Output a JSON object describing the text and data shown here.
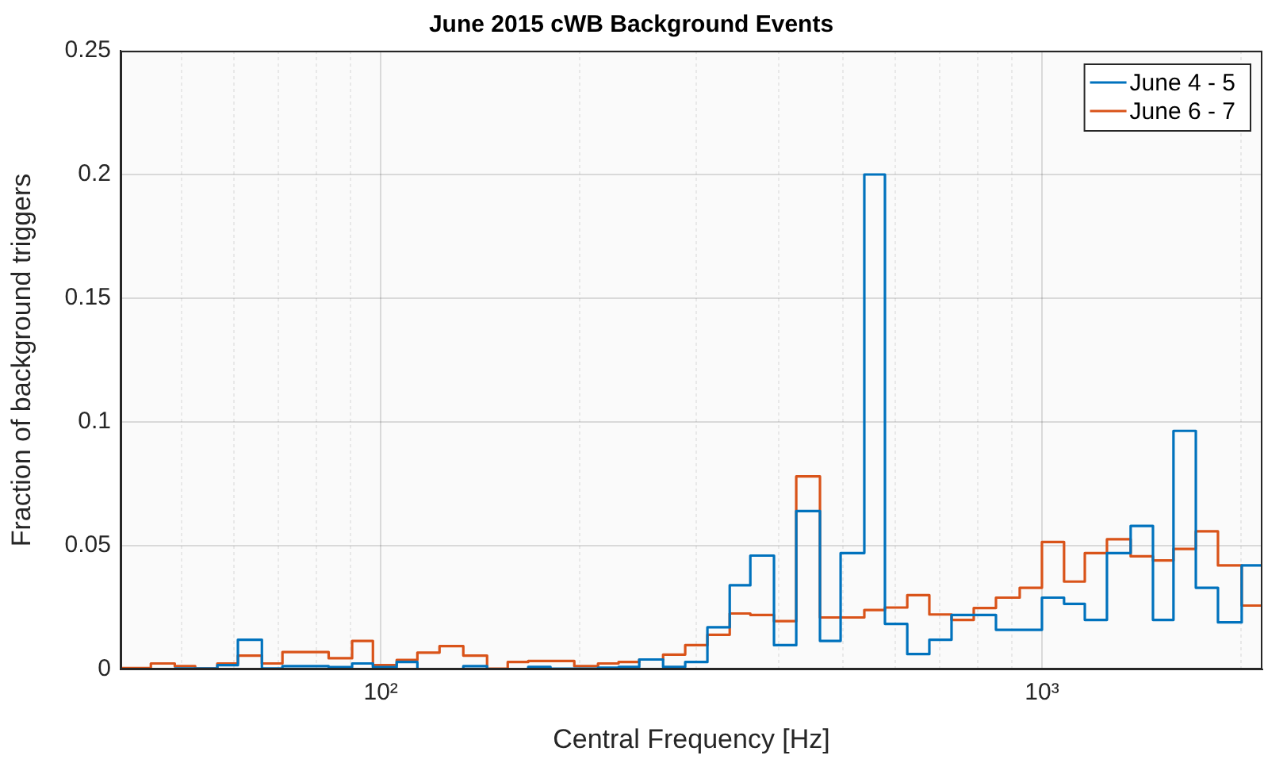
{
  "chart_data": {
    "type": "histogram",
    "title": "June 2015 cWB Background Events",
    "xlabel": "Central Frequency [Hz]",
    "ylabel": "Fraction of background triggers",
    "log": "x",
    "grid": true,
    "legend": "top right",
    "xlim": [
      40.4,
      2155
    ],
    "ylim": [
      0,
      0.25
    ],
    "xticks": [
      {
        "value": 50,
        "label": null
      },
      {
        "value": 60,
        "label": null
      },
      {
        "value": 70,
        "label": null
      },
      {
        "value": 80,
        "label": null
      },
      {
        "value": 90,
        "label": null
      },
      {
        "value": 100,
        "label": "10²"
      },
      {
        "value": 200,
        "label": null
      },
      {
        "value": 300,
        "label": null
      },
      {
        "value": 400,
        "label": null
      },
      {
        "value": 500,
        "label": null
      },
      {
        "value": 600,
        "label": null
      },
      {
        "value": 700,
        "label": null
      },
      {
        "value": 800,
        "label": null
      },
      {
        "value": 900,
        "label": null
      },
      {
        "value": 1000,
        "label": "10³"
      },
      {
        "value": 2000,
        "label": null
      }
    ],
    "yticks": [
      0,
      0.05,
      0.1,
      0.15,
      0.2,
      0.25
    ],
    "bins": [
      40.4,
      44.9,
      48.8,
      52.4,
      56.6,
      60.8,
      66.1,
      71.0,
      76.7,
      83.4,
      90.5,
      97.3,
      105.7,
      113.6,
      122.7,
      133.3,
      144.8,
      155.6,
      167.1,
      180.6,
      196.2,
      213.1,
      228.9,
      246.0,
      267.3,
      288.7,
      311.9,
      337.1,
      362.2,
      393.3,
      425.0,
      461.6,
      496.0,
      538.7,
      578.8,
      625.6,
      675.6,
      729.9,
      788.6,
      852.0,
      925.5,
      1000,
      1080,
      1161,
      1254,
      1362,
      1472,
      1581,
      1709,
      1846,
      2005,
      2155
    ],
    "series": [
      {
        "name": "June 4 - 5",
        "color": "#0072bd",
        "values": [
          0,
          0,
          0.0004,
          0.0004,
          0.0017,
          0.012,
          0.0004,
          0.0013,
          0.0013,
          0.0009,
          0.0024,
          0.0009,
          0.003,
          0,
          0,
          0.0013,
          0,
          0,
          0.001,
          0.0003,
          0.0003,
          0.0007,
          0.001,
          0.004,
          0.001,
          0.003,
          0.017,
          0.034,
          0.046,
          0.0098,
          0.064,
          0.0115,
          0.047,
          0.2,
          0.0184,
          0.0062,
          0.012,
          0.022,
          0.022,
          0.016,
          0.016,
          0.029,
          0.0265,
          0.02,
          0.047,
          0.058,
          0.02,
          0.0964,
          0.033,
          0.019,
          0.042
        ]
      },
      {
        "name": "June 6 - 7",
        "color": "#d95319",
        "values": [
          0.0005,
          0.0024,
          0.0013,
          0.0004,
          0.0024,
          0.0056,
          0.0024,
          0.007,
          0.007,
          0.0045,
          0.0115,
          0.0017,
          0.0038,
          0.0068,
          0.0094,
          0.0056,
          0.0003,
          0.003,
          0.0034,
          0.0034,
          0.0013,
          0.0024,
          0.003,
          0.004,
          0.006,
          0.0098,
          0.014,
          0.0226,
          0.022,
          0.0195,
          0.078,
          0.021,
          0.021,
          0.024,
          0.025,
          0.03,
          0.0222,
          0.02,
          0.0248,
          0.029,
          0.033,
          0.0515,
          0.0355,
          0.047,
          0.0526,
          0.0457,
          0.044,
          0.0487,
          0.0558,
          0.042,
          0.0258
        ]
      }
    ]
  }
}
